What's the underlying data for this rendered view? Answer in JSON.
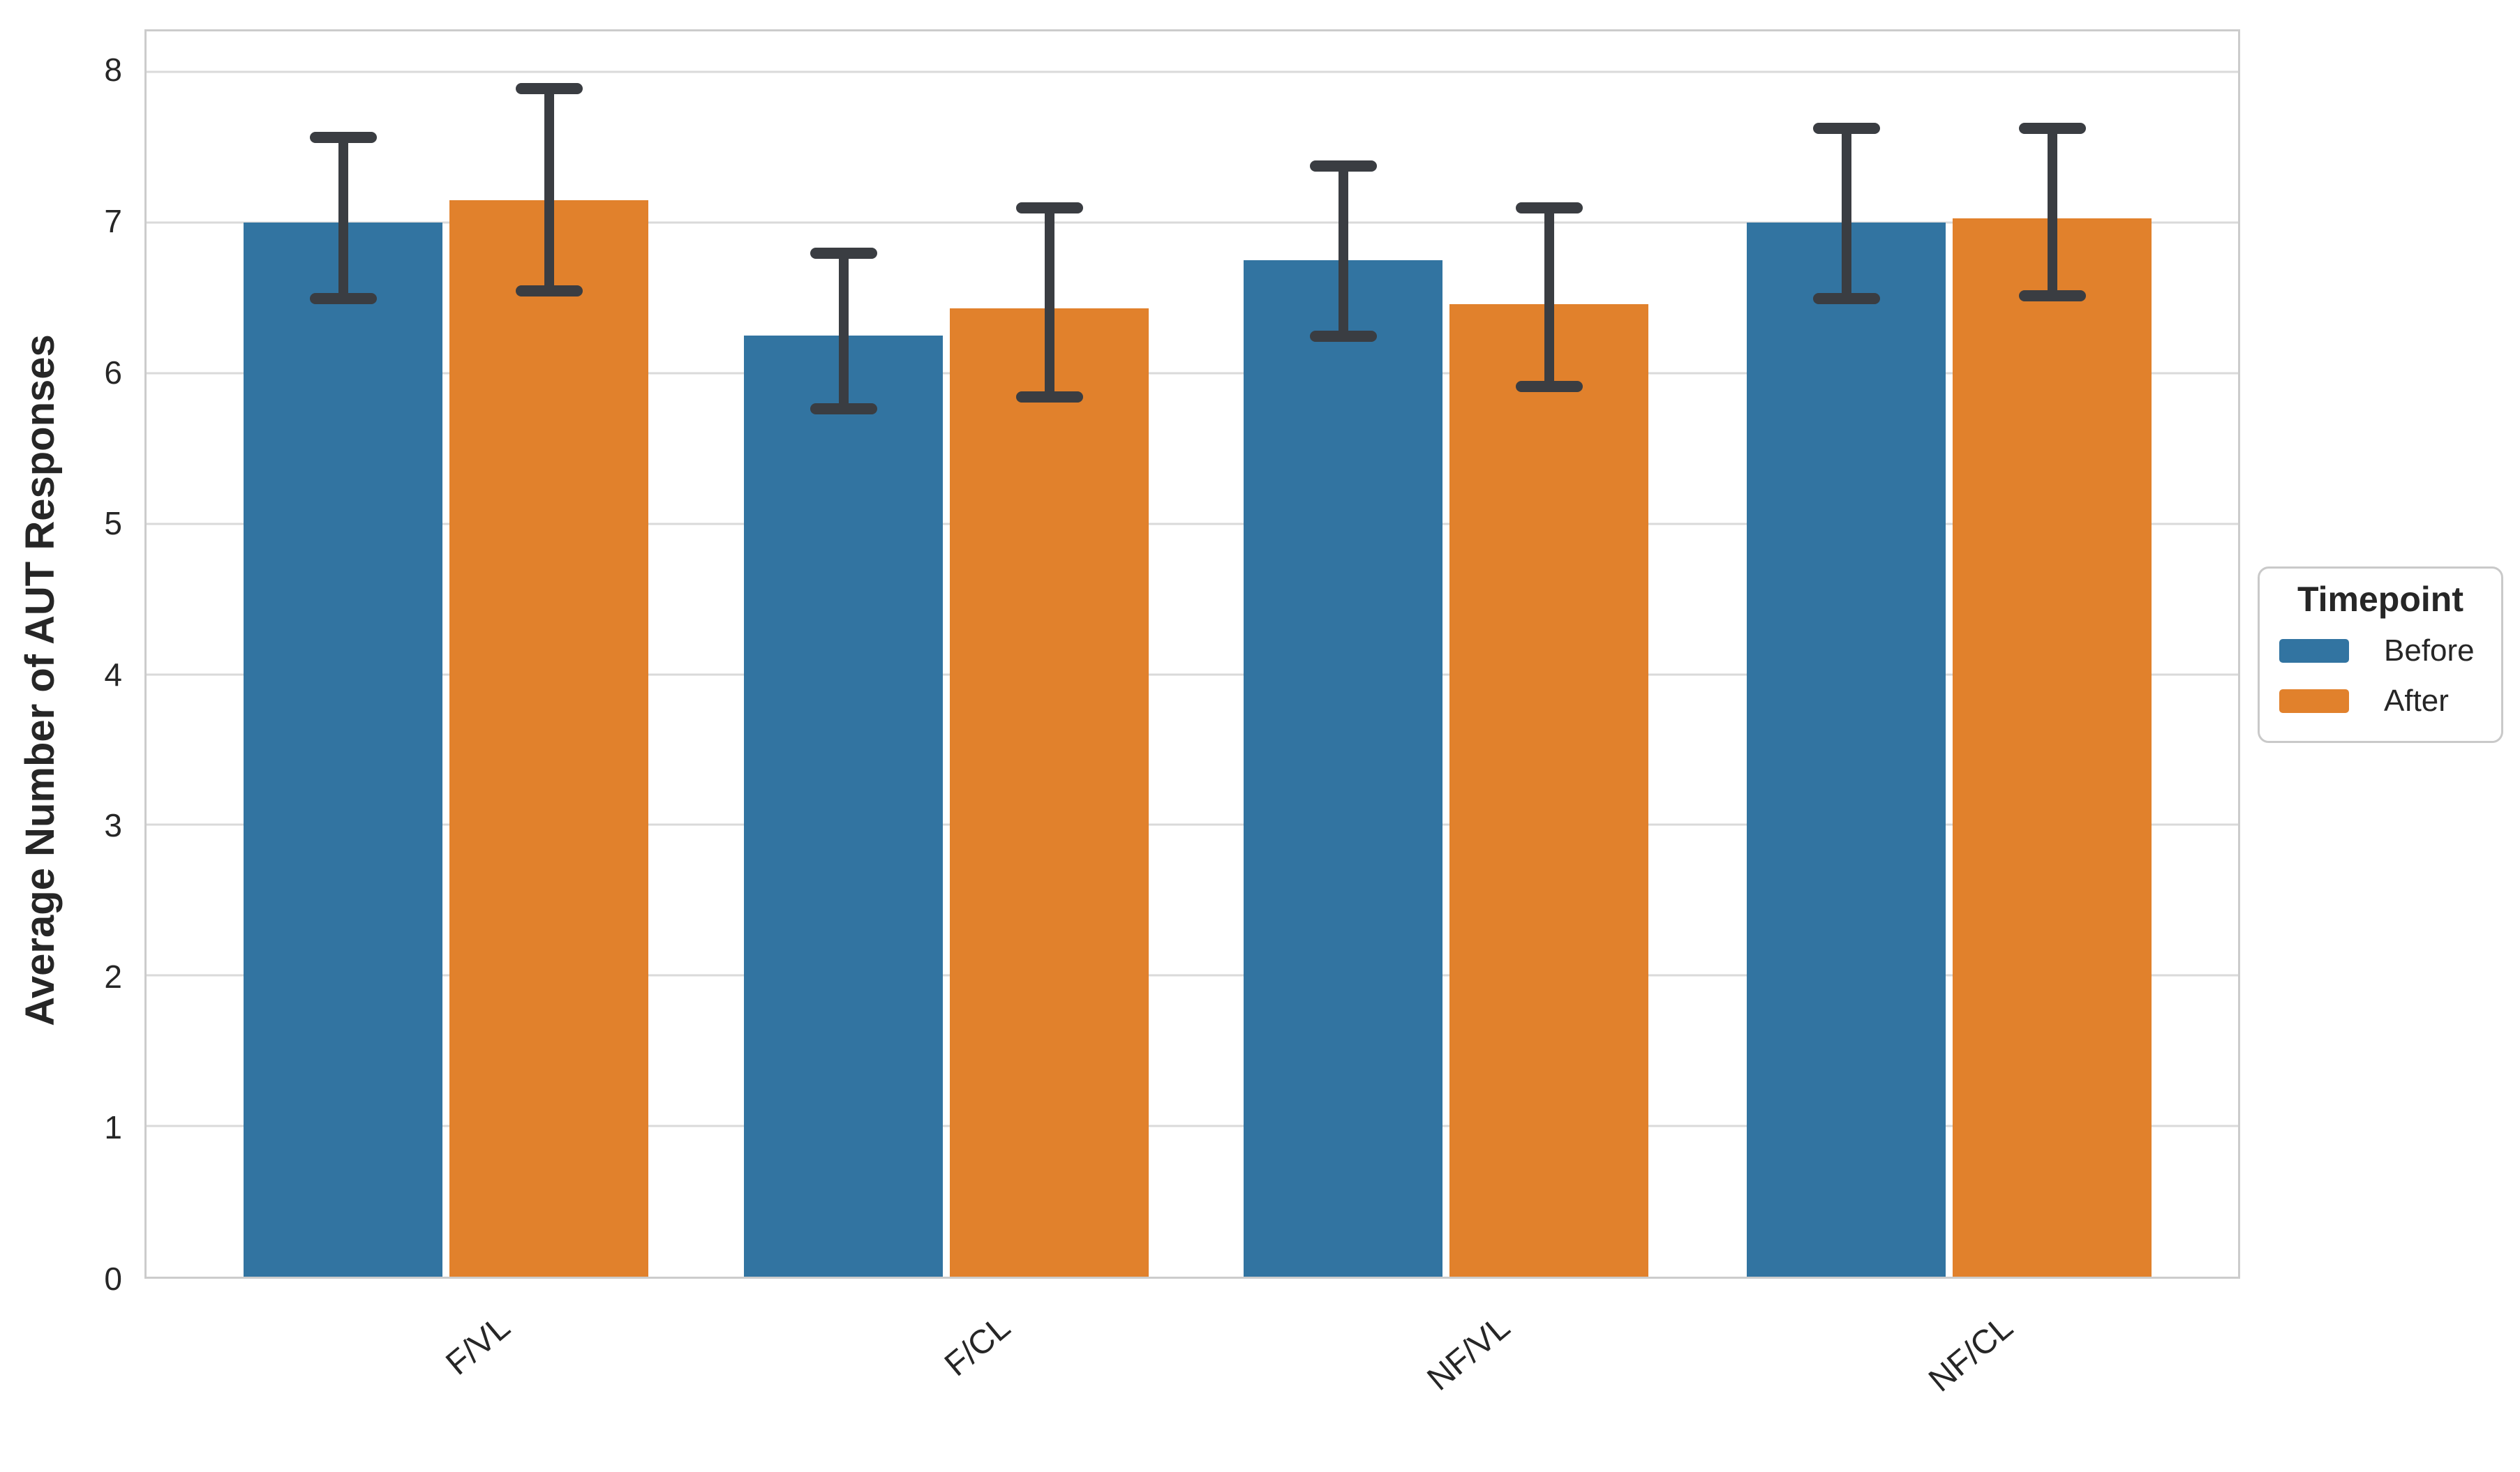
{
  "figure": {
    "background_color": "#ffffff",
    "text_color": "#262626",
    "grid_color": "#dadada",
    "spine_color": "#cccccc",
    "errorbar_color": "#3a3d42"
  },
  "chart_data": {
    "type": "bar",
    "title": "",
    "xlabel": "",
    "ylabel": "Average Number of AUT Responses",
    "categories": [
      "F/VL",
      "F/CL",
      "NF/VL",
      "NF/CL"
    ],
    "series": [
      {
        "name": "Before",
        "color": "#3274a1",
        "values": [
          7.0,
          6.25,
          6.75,
          7.0
        ],
        "ci_low": [
          6.5,
          5.77,
          6.25,
          6.5
        ],
        "ci_high": [
          7.57,
          6.8,
          7.38,
          7.63
        ]
      },
      {
        "name": "After",
        "color": "#e1812c",
        "values": [
          7.15,
          6.43,
          6.46,
          7.03
        ],
        "ci_low": [
          6.55,
          5.85,
          5.92,
          6.52
        ],
        "ci_high": [
          7.89,
          7.1,
          7.1,
          7.63
        ]
      }
    ],
    "yticks": [
      0,
      1,
      2,
      3,
      4,
      5,
      6,
      7,
      8
    ],
    "ylim": [
      0,
      8.27
    ],
    "grid": "horizontal",
    "error_bars": "caps",
    "xtick_rotation_deg": 40,
    "legend": {
      "title": "Timepoint",
      "position": "right-outside"
    }
  }
}
